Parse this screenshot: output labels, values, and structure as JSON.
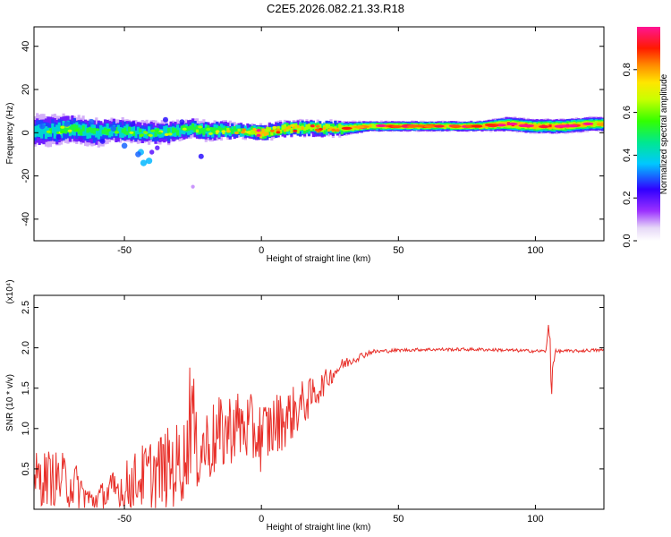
{
  "title": "C2E5.2026.082.21.33.R18",
  "chart_data": [
    {
      "type": "heatmap",
      "xlabel": "Height of straight line (km)",
      "ylabel": "Frequency (Hz)",
      "xlim": [
        -83,
        125
      ],
      "ylim": [
        -50,
        49
      ],
      "xticks": [
        -50,
        0,
        50,
        100
      ],
      "yticks": [
        40,
        20,
        0,
        -20,
        -40
      ],
      "colorbar": {
        "label": "Normalized spectral amplitude",
        "range": [
          0,
          1
        ],
        "ticks": [
          0.0,
          0.2,
          0.4,
          0.6,
          0.8
        ]
      },
      "ridge": {
        "x": [
          -82,
          -75,
          -70,
          -65,
          -60,
          -55,
          -50,
          -45,
          -40,
          -35,
          -30,
          -25,
          -20,
          -15,
          -10,
          -5,
          0,
          5,
          10,
          15,
          20,
          30,
          40,
          50,
          60,
          70,
          80,
          90,
          100,
          110,
          120,
          125
        ],
        "frequency": [
          1,
          1,
          2,
          1,
          0,
          1,
          1,
          0,
          0,
          0,
          1,
          2,
          1,
          1,
          1,
          1,
          0,
          1,
          2,
          2,
          2,
          2,
          3,
          3,
          3,
          3,
          3,
          4,
          3,
          3,
          4,
          4
        ],
        "amplitude": [
          0.5,
          0.5,
          0.55,
          0.55,
          0.5,
          0.55,
          0.55,
          0.5,
          0.5,
          0.55,
          0.55,
          0.6,
          0.6,
          0.6,
          0.6,
          0.65,
          0.95,
          0.7,
          0.75,
          0.75,
          0.75,
          0.75,
          0.8,
          0.82,
          0.8,
          0.82,
          0.82,
          0.9,
          0.85,
          0.9,
          0.8,
          0.8
        ],
        "spread": [
          7,
          7,
          6,
          6,
          6,
          5,
          5,
          5,
          5,
          5,
          4,
          4,
          4,
          4,
          3,
          3,
          3,
          3,
          3,
          3,
          3,
          3,
          2,
          2,
          2,
          2,
          2,
          3,
          3,
          3,
          3,
          3
        ]
      },
      "scatter_blobs": {
        "x": [
          -80,
          -74,
          -71,
          -66,
          -62,
          -58,
          -54,
          -50,
          -47,
          -44,
          -41,
          -38,
          -35,
          -32,
          -29,
          -45,
          -43,
          -40,
          -22,
          -25
        ],
        "frequency": [
          3,
          -2,
          4,
          -3,
          5,
          -4,
          2,
          -6,
          4,
          -9,
          -13,
          -7,
          6,
          -3,
          5,
          -10,
          -14,
          -9,
          -11,
          -25
        ],
        "amplitude": [
          0.3,
          0.25,
          0.3,
          0.2,
          0.3,
          0.25,
          0.3,
          0.3,
          0.25,
          0.35,
          0.35,
          0.2,
          0.25,
          0.2,
          0.25,
          0.3,
          0.35,
          0.2,
          0.25,
          0.1
        ]
      }
    },
    {
      "type": "line",
      "xlabel": "Height of straight line (km)",
      "ylabel": "SNR (10 * v/v)",
      "y_multiplier": "(x10⁴)",
      "xlim": [
        -83,
        125
      ],
      "ylim": [
        0,
        2.65
      ],
      "xticks": [
        -50,
        0,
        50,
        100
      ],
      "yticks": [
        0.5,
        1.0,
        1.5,
        2.0,
        2.5
      ],
      "color": "#e8302a",
      "envelope": {
        "x": [
          -83,
          -78,
          -72,
          -68,
          -65,
          -62,
          -58,
          -52,
          -48,
          -44,
          -40,
          -35,
          -30,
          -27,
          -26,
          -24,
          -20,
          -15,
          -10,
          -5,
          0,
          5,
          10,
          15,
          20,
          25,
          30,
          35,
          40,
          50,
          60,
          70,
          80,
          90,
          100,
          104,
          105,
          106,
          107,
          110,
          115,
          120,
          125
        ],
        "mean": [
          0.35,
          0.4,
          0.35,
          0.3,
          0.2,
          0.1,
          0.15,
          0.25,
          0.3,
          0.4,
          0.45,
          0.5,
          0.55,
          0.7,
          1.5,
          0.7,
          0.8,
          0.9,
          1.05,
          1.0,
          0.9,
          1.05,
          1.15,
          1.3,
          1.45,
          1.65,
          1.8,
          1.88,
          1.95,
          1.97,
          1.98,
          1.98,
          1.98,
          1.97,
          1.96,
          1.96,
          2.3,
          1.6,
          1.95,
          1.96,
          1.96,
          1.97,
          1.97
        ],
        "amplitude": [
          0.35,
          0.35,
          0.35,
          0.3,
          0.2,
          0.15,
          0.2,
          0.3,
          0.35,
          0.4,
          0.45,
          0.5,
          0.55,
          0.5,
          1.1,
          0.5,
          0.5,
          0.5,
          0.45,
          0.45,
          0.45,
          0.4,
          0.35,
          0.3,
          0.2,
          0.12,
          0.08,
          0.05,
          0.03,
          0.02,
          0.02,
          0.02,
          0.02,
          0.02,
          0.02,
          0.02,
          0.25,
          0.35,
          0.03,
          0.02,
          0.02,
          0.02,
          0.02
        ]
      },
      "samples": 700
    }
  ]
}
